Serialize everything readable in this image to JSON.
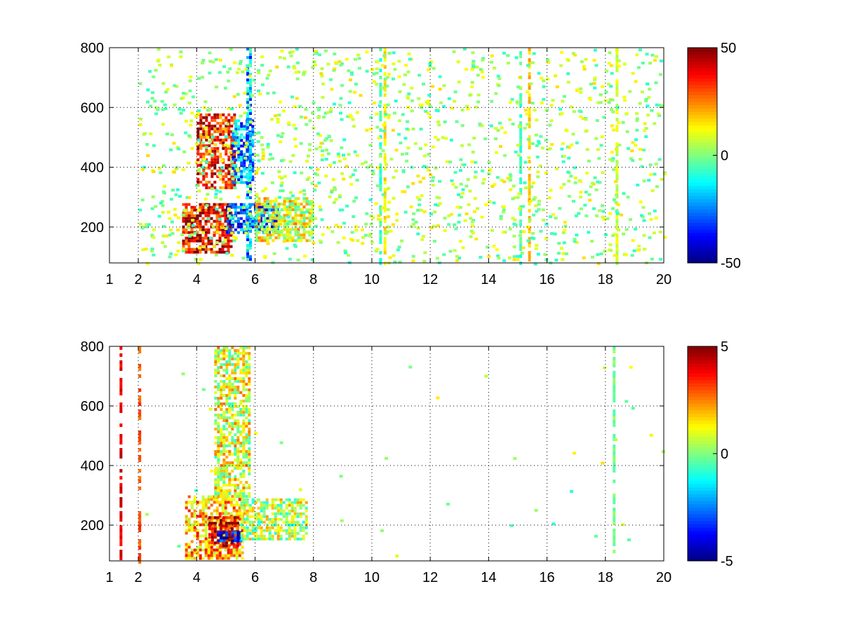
{
  "chart_data": [
    {
      "type": "heatmap",
      "title": "",
      "xlabel": "",
      "ylabel": "",
      "xlim": [
        1,
        20
      ],
      "ylim": [
        80,
        800
      ],
      "xscale": "custom (1 and 2 labeled at left edge, then linear 2–20)",
      "x_ticks": [
        "1",
        "2",
        "4",
        "6",
        "8",
        "10",
        "12",
        "14",
        "16",
        "18",
        "20"
      ],
      "y_ticks": [
        "200",
        "400",
        "600",
        "800"
      ],
      "grid": true,
      "colormap": "jet",
      "clim": [
        -50,
        50
      ],
      "colorbar_ticks": [
        "50",
        "0",
        "-50"
      ],
      "background": "white (missing / NaN cells)",
      "regions": [
        {
          "x": [
            3.5,
            5.2
          ],
          "y": [
            120,
            280
          ],
          "value": 40,
          "desc": "strong positive band"
        },
        {
          "x": [
            4.0,
            5.3
          ],
          "y": [
            330,
            580
          ],
          "value": 35,
          "desc": "positive ridge rising with x"
        },
        {
          "x": [
            5.0,
            6.8
          ],
          "y": [
            180,
            280
          ],
          "value": -30,
          "desc": "negative band"
        },
        {
          "x": [
            5.2,
            5.9
          ],
          "y": [
            350,
            560
          ],
          "value": -25,
          "desc": "negative patch"
        },
        {
          "x": [
            5.7,
            5.8
          ],
          "y": [
            80,
            800
          ],
          "value": -20,
          "desc": "vertical negative stripe"
        },
        {
          "x": [
            6.0,
            8.0
          ],
          "y": [
            150,
            300
          ],
          "value": 10,
          "desc": "mixed weak tail"
        }
      ],
      "column_stripes": [
        {
          "x": 10.3,
          "value": -8
        },
        {
          "x": 10.45,
          "value": 15
        },
        {
          "x": 15.1,
          "value": -5
        },
        {
          "x": 15.4,
          "value": 18
        },
        {
          "x": 18.4,
          "value": 8
        }
      ]
    },
    {
      "type": "heatmap",
      "title": "",
      "xlabel": "",
      "ylabel": "",
      "xlim": [
        1,
        20
      ],
      "ylim": [
        80,
        800
      ],
      "xscale": "custom (1 and 2 labeled at left edge, then linear 2–20)",
      "x_ticks": [
        "1",
        "2",
        "4",
        "6",
        "8",
        "10",
        "12",
        "14",
        "16",
        "18",
        "20"
      ],
      "y_ticks": [
        "200",
        "400",
        "600",
        "800"
      ],
      "grid": true,
      "colormap": "jet",
      "clim": [
        -5,
        5
      ],
      "colorbar_ticks": [
        "5",
        "0",
        "-5"
      ],
      "background": "white (missing / NaN cells)",
      "regions": [
        {
          "x": [
            3.6,
            5.6
          ],
          "y": [
            90,
            300
          ],
          "value": 2,
          "desc": "dense mixed cluster"
        },
        {
          "x": [
            4.4,
            5.4
          ],
          "y": [
            130,
            230
          ],
          "value": 4,
          "desc": "strong positive band"
        },
        {
          "x": [
            4.7,
            5.5
          ],
          "y": [
            150,
            180
          ],
          "value": -4,
          "desc": "strong negative streak"
        },
        {
          "x": [
            4.6,
            5.8
          ],
          "y": [
            300,
            800
          ],
          "value": 1,
          "desc": "sparse mixed ridge"
        },
        {
          "x": [
            5.5,
            7.8
          ],
          "y": [
            150,
            290
          ],
          "value": 0.5,
          "desc": "weak tail"
        }
      ],
      "column_stripes": [
        {
          "x": 1.4,
          "value": 4
        },
        {
          "x": 2.05,
          "value": 3
        },
        {
          "x": 18.3,
          "value": 0
        }
      ]
    }
  ]
}
